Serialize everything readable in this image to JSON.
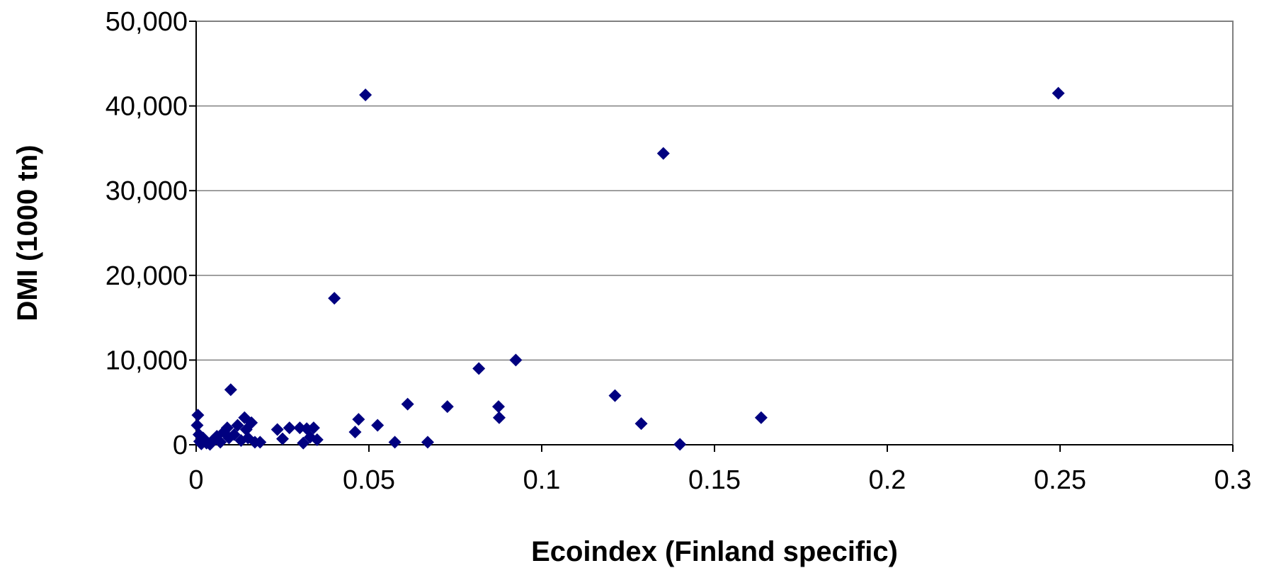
{
  "chart_data": {
    "type": "scatter",
    "title": "",
    "xlabel": "Ecoindex (Finland specific)",
    "ylabel": "DMI (1000 tn)",
    "xlim": [
      0,
      0.3
    ],
    "ylim": [
      0,
      50000
    ],
    "x_ticks": [
      0,
      0.05,
      0.1,
      0.15,
      0.2,
      0.25,
      0.3
    ],
    "x_tick_labels": [
      "0",
      "0.05",
      "0.1",
      "0.15",
      "0.2",
      "0.25",
      "0.3"
    ],
    "y_ticks": [
      0,
      10000,
      20000,
      30000,
      40000,
      50000
    ],
    "y_tick_labels": [
      "0",
      "10,000",
      "20,000",
      "30,000",
      "40,000",
      "50,000"
    ],
    "grid": {
      "horizontal": true,
      "vertical": false
    },
    "legend": "none",
    "marker": "diamond",
    "marker_color": "#000080",
    "grid_color": "#808080",
    "points": [
      {
        "x": 0.0005,
        "y": 3500
      },
      {
        "x": 0.0003,
        "y": 2300
      },
      {
        "x": 0.0008,
        "y": 1200
      },
      {
        "x": 0.001,
        "y": 400
      },
      {
        "x": 0.0015,
        "y": 100
      },
      {
        "x": 0.002,
        "y": 800
      },
      {
        "x": 0.003,
        "y": 200
      },
      {
        "x": 0.004,
        "y": 50
      },
      {
        "x": 0.005,
        "y": 600
      },
      {
        "x": 0.006,
        "y": 1000
      },
      {
        "x": 0.007,
        "y": 300
      },
      {
        "x": 0.008,
        "y": 1500
      },
      {
        "x": 0.009,
        "y": 2000
      },
      {
        "x": 0.0095,
        "y": 800
      },
      {
        "x": 0.01,
        "y": 6500
      },
      {
        "x": 0.011,
        "y": 1200
      },
      {
        "x": 0.012,
        "y": 2300
      },
      {
        "x": 0.013,
        "y": 500
      },
      {
        "x": 0.014,
        "y": 3200
      },
      {
        "x": 0.0145,
        "y": 1800
      },
      {
        "x": 0.015,
        "y": 800
      },
      {
        "x": 0.016,
        "y": 2600
      },
      {
        "x": 0.017,
        "y": 300
      },
      {
        "x": 0.0185,
        "y": 300
      },
      {
        "x": 0.0235,
        "y": 1800
      },
      {
        "x": 0.025,
        "y": 700
      },
      {
        "x": 0.027,
        "y": 2000
      },
      {
        "x": 0.03,
        "y": 2000
      },
      {
        "x": 0.031,
        "y": 200
      },
      {
        "x": 0.032,
        "y": 1900
      },
      {
        "x": 0.033,
        "y": 900
      },
      {
        "x": 0.034,
        "y": 2000
      },
      {
        "x": 0.035,
        "y": 600
      },
      {
        "x": 0.04,
        "y": 17300
      },
      {
        "x": 0.046,
        "y": 1500
      },
      {
        "x": 0.047,
        "y": 3000
      },
      {
        "x": 0.049,
        "y": 41300
      },
      {
        "x": 0.0525,
        "y": 2300
      },
      {
        "x": 0.0575,
        "y": 300
      },
      {
        "x": 0.0612,
        "y": 4800
      },
      {
        "x": 0.067,
        "y": 300
      },
      {
        "x": 0.0727,
        "y": 4500
      },
      {
        "x": 0.0818,
        "y": 9000
      },
      {
        "x": 0.0875,
        "y": 4500
      },
      {
        "x": 0.0877,
        "y": 3200
      },
      {
        "x": 0.0925,
        "y": 10000
      },
      {
        "x": 0.1212,
        "y": 5800
      },
      {
        "x": 0.1288,
        "y": 2500
      },
      {
        "x": 0.1352,
        "y": 34400
      },
      {
        "x": 0.14,
        "y": 50
      },
      {
        "x": 0.1635,
        "y": 3200
      },
      {
        "x": 0.2495,
        "y": 41500
      }
    ]
  }
}
